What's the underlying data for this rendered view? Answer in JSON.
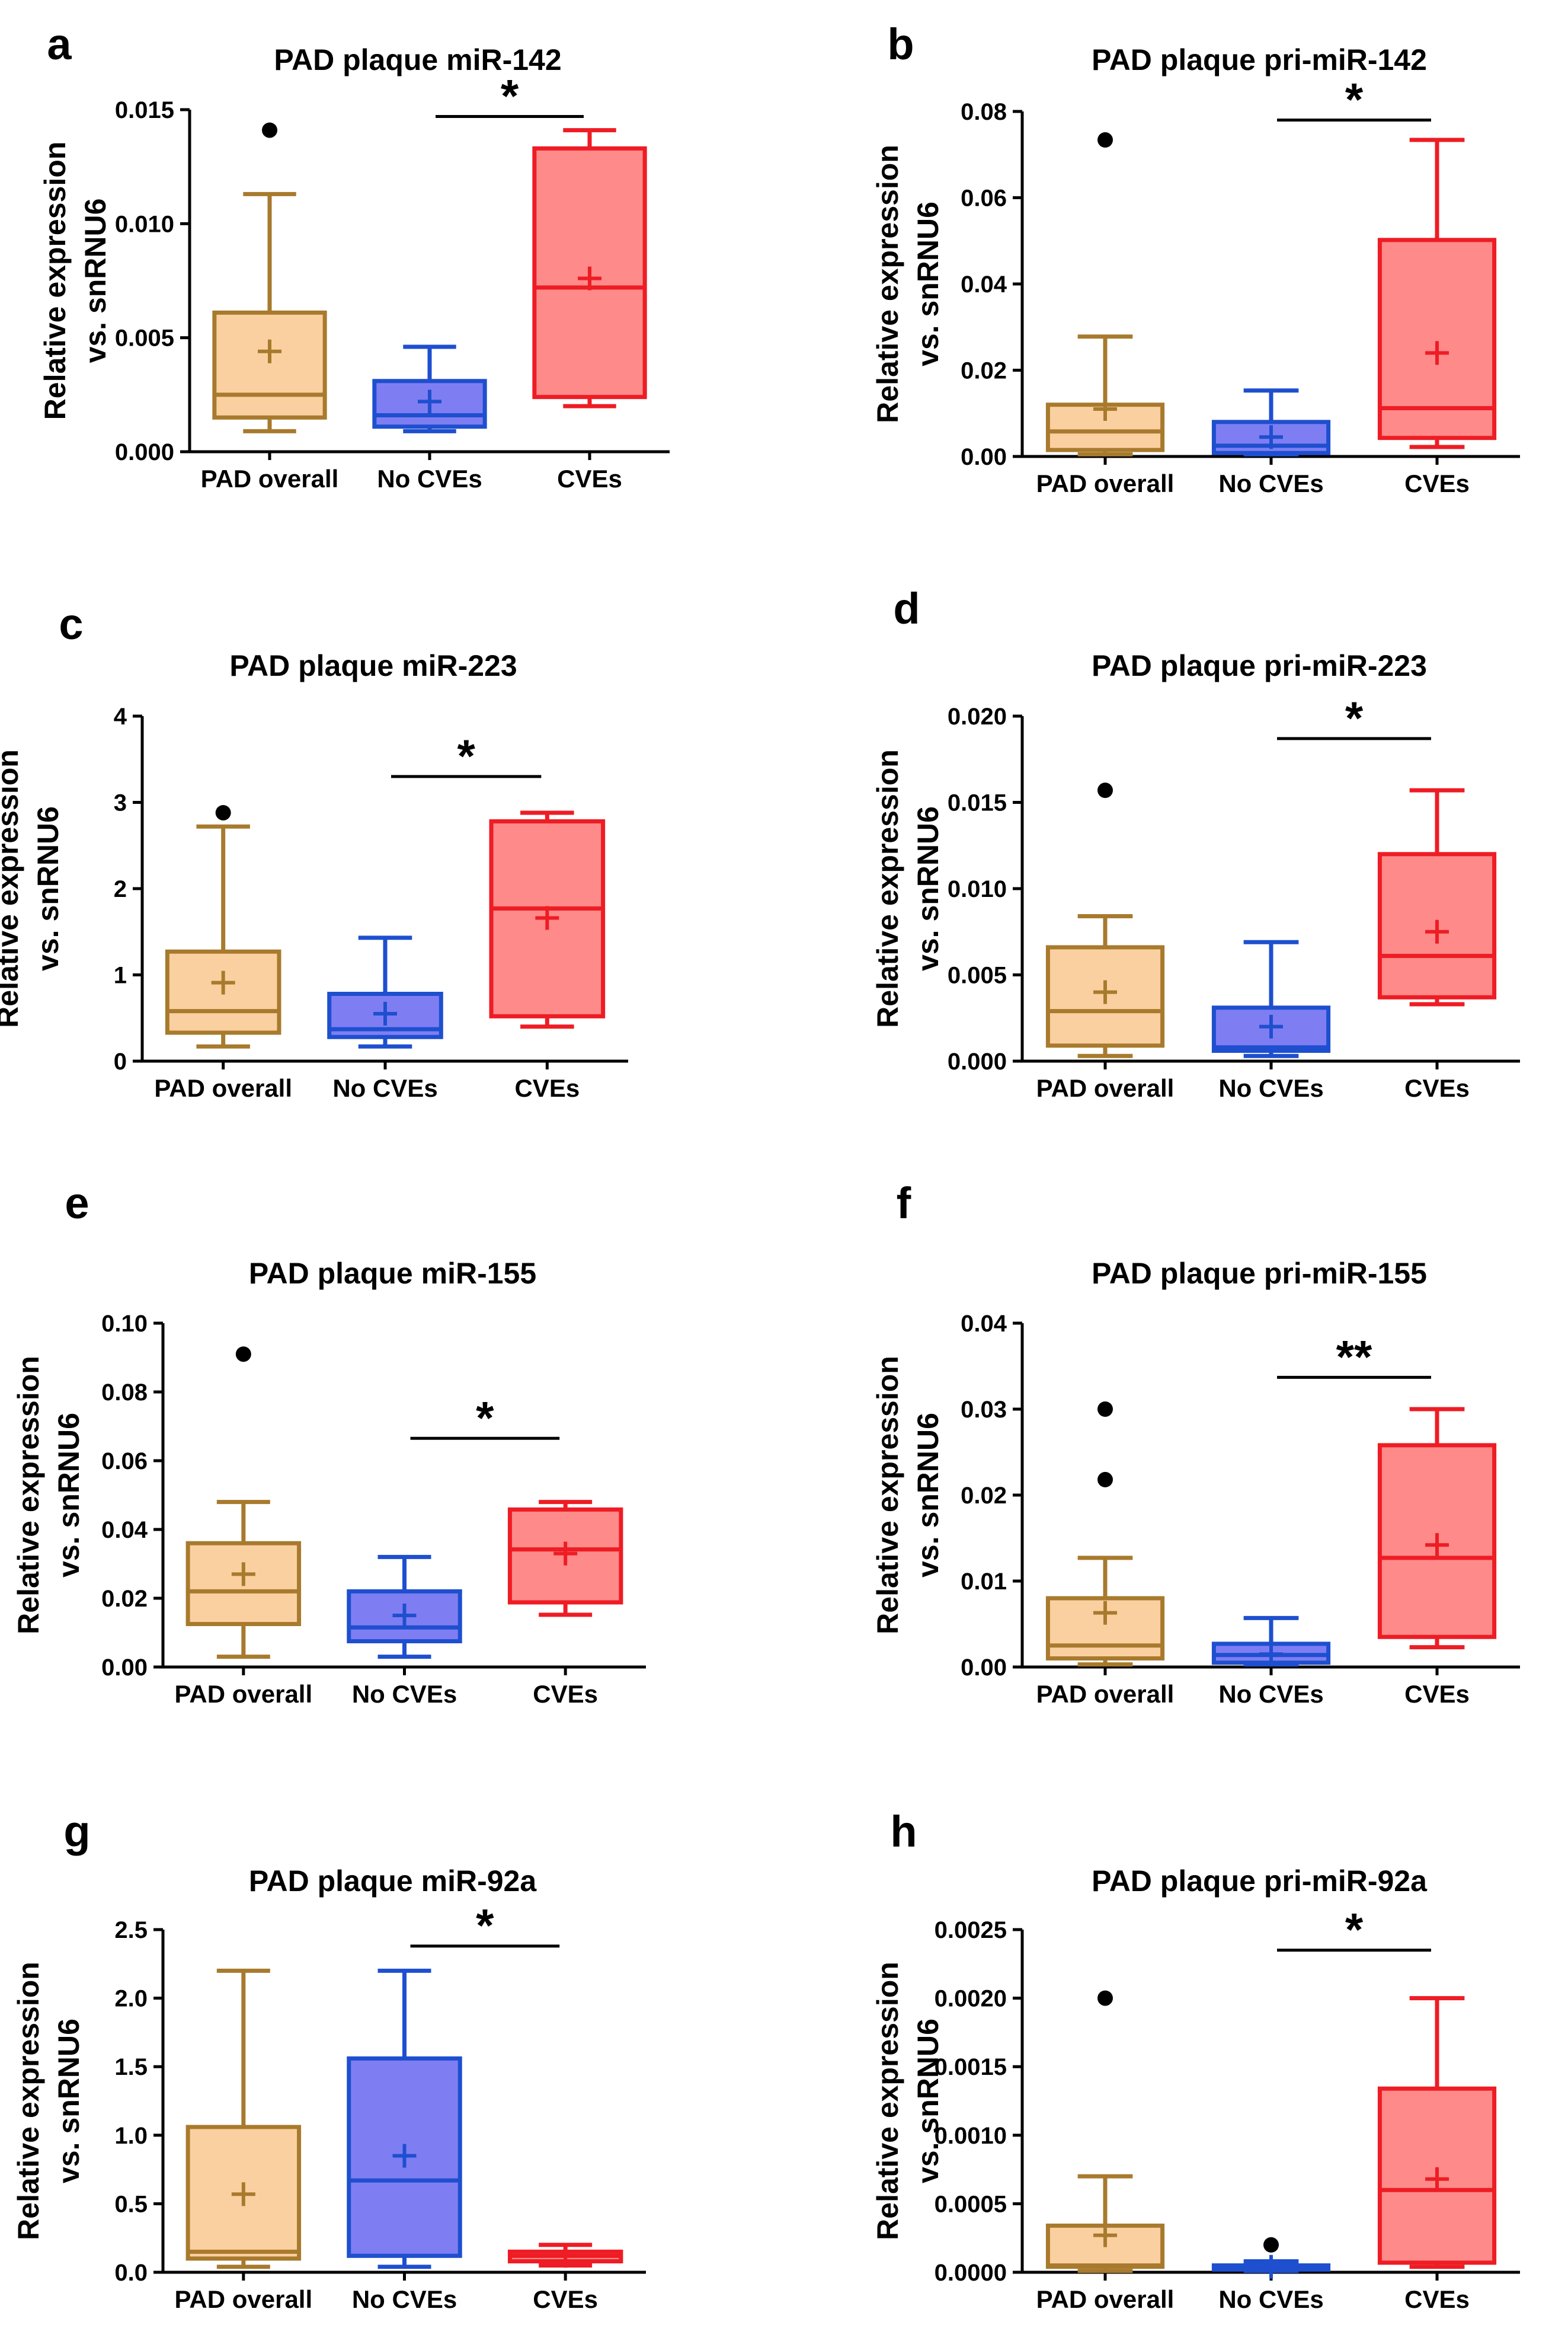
{
  "figure_title": "",
  "colors": {
    "PAD overall": {
      "stroke": "#A87A2D",
      "fill": "#FAD0A0"
    },
    "No CVEs": {
      "stroke": "#1E4FCF",
      "fill": "#7E7EF2"
    },
    "CVEs": {
      "stroke": "#EE1C24",
      "fill": "#FF8A8A"
    },
    "ink": "#000000"
  },
  "chart_data": [
    {
      "panel": "a",
      "type": "box",
      "title": "PAD plaque miR-142",
      "ylabel_line1": "Relative expression",
      "ylabel_line2": "vs. snRNU6",
      "ylim": [
        0,
        0.015
      ],
      "yticks": [
        "0.000",
        "0.005",
        "0.010",
        "0.015"
      ],
      "categories": [
        "PAD overall",
        "No CVEs",
        "CVEs"
      ],
      "series": [
        {
          "name": "PAD overall",
          "min": 0.0009,
          "q1": 0.0015,
          "median": 0.0025,
          "q3": 0.0061,
          "max": 0.0113,
          "mean": 0.0044,
          "outliers": [
            0.0141
          ]
        },
        {
          "name": "No CVEs",
          "min": 0.0009,
          "q1": 0.0011,
          "median": 0.0016,
          "q3": 0.0031,
          "max": 0.0046,
          "mean": 0.0022,
          "outliers": []
        },
        {
          "name": "CVEs",
          "min": 0.002,
          "q1": 0.0024,
          "median": 0.0072,
          "q3": 0.0133,
          "max": 0.0141,
          "mean": 0.0076,
          "outliers": []
        }
      ],
      "significance": {
        "from": 1,
        "to": 2,
        "label": "*",
        "y": 0.0147
      }
    },
    {
      "panel": "b",
      "type": "box",
      "title": "PAD plaque pri-miR-142",
      "ylabel_line1": "Relative expression",
      "ylabel_line2": "vs. snRNU6",
      "ylim": [
        0,
        0.08
      ],
      "yticks": [
        "0.00",
        "0.02",
        "0.04",
        "0.06",
        "0.08"
      ],
      "categories": [
        "PAD overall",
        "No CVEs",
        "CVEs"
      ],
      "series": [
        {
          "name": "PAD overall",
          "min": 0.0005,
          "q1": 0.0015,
          "median": 0.0058,
          "q3": 0.012,
          "max": 0.0278,
          "mean": 0.011,
          "outliers": [
            0.0734
          ]
        },
        {
          "name": "No CVEs",
          "min": 0.0005,
          "q1": 0.0008,
          "median": 0.0025,
          "q3": 0.008,
          "max": 0.0153,
          "mean": 0.0045,
          "outliers": []
        },
        {
          "name": "CVEs",
          "min": 0.0022,
          "q1": 0.0043,
          "median": 0.0112,
          "q3": 0.0502,
          "max": 0.0734,
          "mean": 0.024,
          "outliers": []
        }
      ],
      "significance": {
        "from": 1,
        "to": 2,
        "label": "*",
        "y": 0.078
      }
    },
    {
      "panel": "c",
      "type": "box",
      "title": "PAD plaque miR-223",
      "ylabel_line1": "Relative expression",
      "ylabel_line2": "vs. snRNU6",
      "ylim": [
        0,
        4
      ],
      "yticks": [
        "0",
        "1",
        "2",
        "3",
        "4"
      ],
      "categories": [
        "PAD overall",
        "No CVEs",
        "CVEs"
      ],
      "series": [
        {
          "name": "PAD overall",
          "min": 0.17,
          "q1": 0.33,
          "median": 0.58,
          "q3": 1.27,
          "max": 2.72,
          "mean": 0.91,
          "outliers": [
            2.88
          ]
        },
        {
          "name": "No CVEs",
          "min": 0.17,
          "q1": 0.28,
          "median": 0.37,
          "q3": 0.78,
          "max": 1.43,
          "mean": 0.55,
          "outliers": []
        },
        {
          "name": "CVEs",
          "min": 0.4,
          "q1": 0.52,
          "median": 1.77,
          "q3": 2.78,
          "max": 2.88,
          "mean": 1.66,
          "outliers": []
        }
      ],
      "significance": {
        "from": 1,
        "to": 2,
        "label": "*",
        "y": 3.3
      }
    },
    {
      "panel": "d",
      "type": "box",
      "title": "PAD plaque pri-miR-223",
      "ylabel_line1": "Relative expression",
      "ylabel_line2": "vs. snRNU6",
      "ylim": [
        0,
        0.02
      ],
      "yticks": [
        "0.000",
        "0.005",
        "0.010",
        "0.015",
        "0.020"
      ],
      "categories": [
        "PAD overall",
        "No CVEs",
        "CVEs"
      ],
      "series": [
        {
          "name": "PAD overall",
          "min": 0.0003,
          "q1": 0.0009,
          "median": 0.0029,
          "q3": 0.0066,
          "max": 0.0084,
          "mean": 0.004,
          "outliers": [
            0.0157
          ]
        },
        {
          "name": "No CVEs",
          "min": 0.0003,
          "q1": 0.0006,
          "median": 0.0008,
          "q3": 0.0031,
          "max": 0.0069,
          "mean": 0.002,
          "outliers": []
        },
        {
          "name": "CVEs",
          "min": 0.0033,
          "q1": 0.0037,
          "median": 0.0061,
          "q3": 0.012,
          "max": 0.0157,
          "mean": 0.0075,
          "outliers": []
        }
      ],
      "significance": {
        "from": 1,
        "to": 2,
        "label": "*",
        "y": 0.0187
      }
    },
    {
      "panel": "e",
      "type": "box",
      "title": "PAD plaque miR-155",
      "ylabel_line1": "Relative expression",
      "ylabel_line2": "vs. snRNU6",
      "ylim": [
        0,
        0.1
      ],
      "yticks": [
        "0.00",
        "0.02",
        "0.04",
        "0.06",
        "0.08",
        "0.10"
      ],
      "categories": [
        "PAD overall",
        "No CVEs",
        "CVEs"
      ],
      "series": [
        {
          "name": "PAD overall",
          "min": 0.003,
          "q1": 0.0125,
          "median": 0.022,
          "q3": 0.036,
          "max": 0.048,
          "mean": 0.027,
          "outliers": [
            0.091
          ]
        },
        {
          "name": "No CVEs",
          "min": 0.003,
          "q1": 0.0075,
          "median": 0.0115,
          "q3": 0.022,
          "max": 0.032,
          "mean": 0.015,
          "outliers": []
        },
        {
          "name": "CVEs",
          "min": 0.0152,
          "q1": 0.0188,
          "median": 0.0342,
          "q3": 0.0458,
          "max": 0.048,
          "mean": 0.033,
          "outliers": []
        }
      ],
      "significance": {
        "from": 1,
        "to": 2,
        "label": "*",
        "y": 0.0665
      }
    },
    {
      "panel": "f",
      "type": "box",
      "title": "PAD plaque pri-miR-155",
      "ylabel_line1": "Relative expression",
      "ylabel_line2": "vs. snRNU6",
      "ylim": [
        0,
        0.04
      ],
      "yticks": [
        "0.00",
        "0.01",
        "0.02",
        "0.03",
        "0.04"
      ],
      "categories": [
        "PAD overall",
        "No CVEs",
        "CVEs"
      ],
      "series": [
        {
          "name": "PAD overall",
          "min": 0.0003,
          "q1": 0.001,
          "median": 0.0025,
          "q3": 0.008,
          "max": 0.0127,
          "mean": 0.0063,
          "outliers": [
            0.0218,
            0.03
          ]
        },
        {
          "name": "No CVEs",
          "min": 0.0003,
          "q1": 0.0005,
          "median": 0.0014,
          "q3": 0.0027,
          "max": 0.0057,
          "mean": 0.0015,
          "outliers": []
        },
        {
          "name": "CVEs",
          "min": 0.0023,
          "q1": 0.0035,
          "median": 0.0127,
          "q3": 0.0258,
          "max": 0.03,
          "mean": 0.0142,
          "outliers": []
        }
      ],
      "significance": {
        "from": 1,
        "to": 2,
        "label": "**",
        "y": 0.0337
      }
    },
    {
      "panel": "g",
      "type": "box",
      "title": "PAD plaque miR-92a",
      "ylabel_line1": "Relative expression",
      "ylabel_line2": "vs. snRNU6",
      "ylim": [
        0,
        2.5
      ],
      "yticks": [
        "0.0",
        "0.5",
        "1.0",
        "1.5",
        "2.0",
        "2.5"
      ],
      "categories": [
        "PAD overall",
        "No CVEs",
        "CVEs"
      ],
      "series": [
        {
          "name": "PAD overall",
          "min": 0.04,
          "q1": 0.1,
          "median": 0.15,
          "q3": 1.06,
          "max": 2.2,
          "mean": 0.57,
          "outliers": []
        },
        {
          "name": "No CVEs",
          "min": 0.04,
          "q1": 0.12,
          "median": 0.67,
          "q3": 1.56,
          "max": 2.2,
          "mean": 0.85,
          "outliers": []
        },
        {
          "name": "CVEs",
          "min": 0.05,
          "q1": 0.08,
          "median": 0.12,
          "q3": 0.15,
          "max": 0.2,
          "mean": 0.12,
          "outliers": []
        }
      ],
      "significance": {
        "from": 1,
        "to": 2,
        "label": "*",
        "y": 2.38
      }
    },
    {
      "panel": "h",
      "type": "box",
      "title": "PAD plaque pri-miR-92a",
      "ylabel_line1": "Relative expression",
      "ylabel_line2": "vs. snRNU6",
      "ylim": [
        0,
        0.0025
      ],
      "yticks": [
        "0.0000",
        "0.0005",
        "0.0010",
        "0.0015",
        "0.0020",
        "0.0025"
      ],
      "categories": [
        "PAD overall",
        "No CVEs",
        "CVEs"
      ],
      "series": [
        {
          "name": "PAD overall",
          "min": 1e-05,
          "q1": 4e-05,
          "median": 5e-05,
          "q3": 0.00034,
          "max": 0.0007,
          "mean": 0.00027,
          "outliers": [
            0.002
          ]
        },
        {
          "name": "No CVEs",
          "min": 1e-05,
          "q1": 2e-05,
          "median": 3e-05,
          "q3": 5e-05,
          "max": 8e-05,
          "mean": 4e-05,
          "outliers": [
            0.0002
          ]
        },
        {
          "name": "CVEs",
          "min": 4e-05,
          "q1": 7e-05,
          "median": 0.0006,
          "q3": 0.00134,
          "max": 0.002,
          "mean": 0.00068,
          "outliers": []
        }
      ],
      "significance": {
        "from": 1,
        "to": 2,
        "label": "*",
        "y": 0.00235
      }
    }
  ]
}
